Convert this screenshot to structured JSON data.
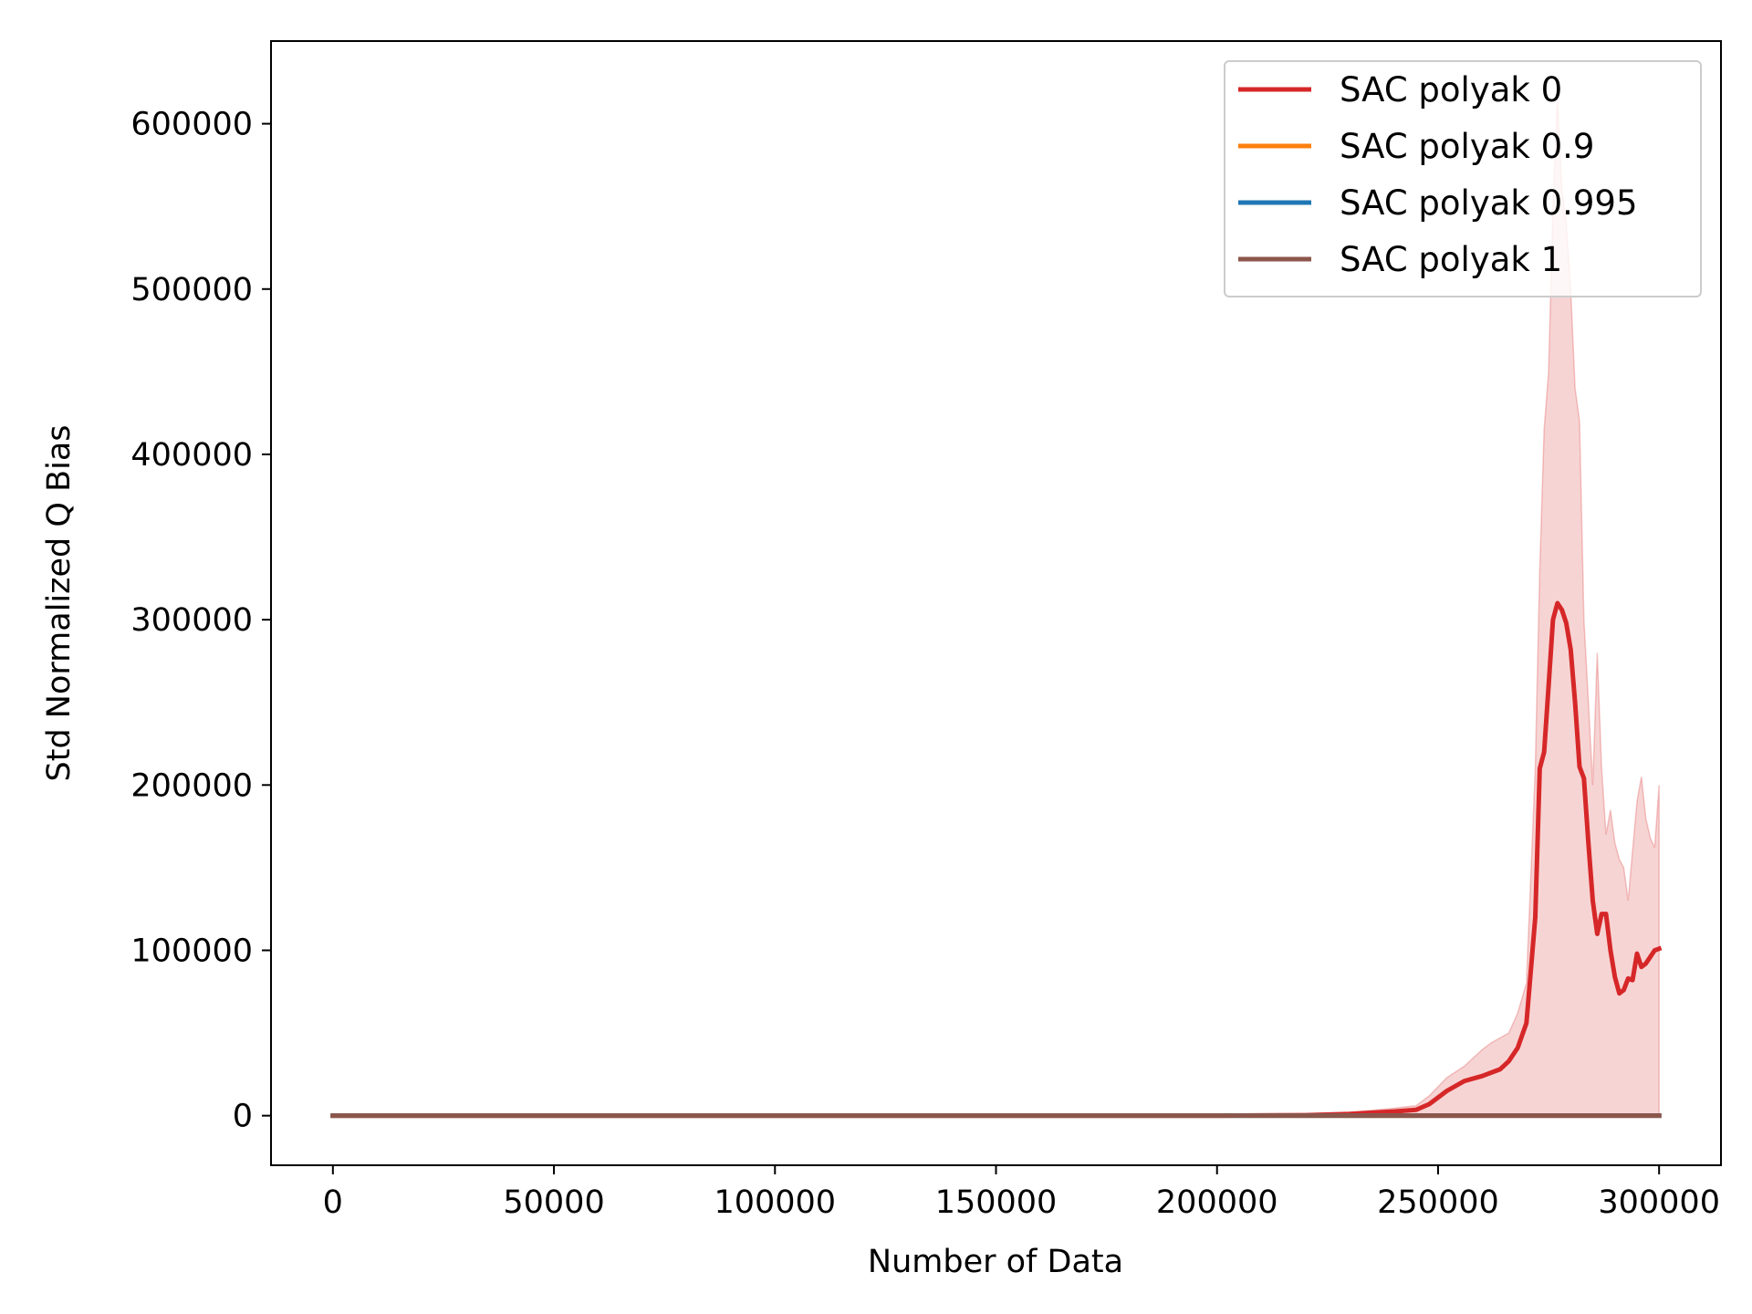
{
  "chart_data": {
    "type": "line",
    "title": "",
    "xlabel": "Number of Data",
    "ylabel": "Std Normalized Q Bias",
    "xlim": [
      -14000,
      314000
    ],
    "ylim": [
      -30000,
      650000
    ],
    "xticks": [
      0,
      50000,
      100000,
      150000,
      200000,
      250000,
      300000
    ],
    "yticks": [
      0,
      100000,
      200000,
      300000,
      400000,
      500000,
      600000
    ],
    "grid": false,
    "legend_position": "top-right",
    "series": [
      {
        "name": "SAC polyak 0",
        "color": "#d62728",
        "x": [
          0,
          50000,
          100000,
          150000,
          200000,
          220000,
          230000,
          240000,
          245000,
          248000,
          252000,
          256000,
          260000,
          262000,
          264000,
          266000,
          268000,
          270000,
          272000,
          273000,
          274000,
          275000,
          276000,
          277000,
          278000,
          279000,
          280000,
          281000,
          282000,
          283000,
          284000,
          285000,
          286000,
          287000,
          288000,
          289000,
          290000,
          291000,
          292000,
          293000,
          294000,
          295000,
          296000,
          297000,
          298000,
          299000,
          300000
        ],
        "y": [
          0,
          0,
          0,
          0,
          0,
          300,
          1000,
          2500,
          3500,
          7000,
          15000,
          21000,
          24000,
          26000,
          28000,
          33000,
          41000,
          56000,
          120000,
          210000,
          220000,
          260000,
          300000,
          310000,
          306000,
          298000,
          282000,
          250000,
          211000,
          204000,
          165000,
          130000,
          110000,
          122000,
          122000,
          100000,
          84000,
          74000,
          76000,
          83000,
          82000,
          98000,
          90000,
          92000,
          96000,
          100000,
          101000
        ],
        "band_upper": [
          0,
          0,
          0,
          0,
          0,
          500,
          2000,
          4500,
          6000,
          12000,
          23000,
          30000,
          40000,
          44000,
          47000,
          50000,
          62000,
          80000,
          210000,
          330000,
          415000,
          450000,
          550000,
          615000,
          560000,
          540000,
          500000,
          440000,
          420000,
          300000,
          250000,
          200000,
          280000,
          210000,
          170000,
          185000,
          165000,
          155000,
          150000,
          130000,
          160000,
          190000,
          205000,
          180000,
          168000,
          162000,
          200000
        ],
        "band_lower": [
          0,
          0,
          0,
          0,
          0,
          0,
          0,
          0,
          0,
          0,
          0,
          0,
          0,
          0,
          0,
          0,
          0,
          0,
          0,
          0,
          0,
          0,
          0,
          0,
          0,
          0,
          0,
          0,
          0,
          0,
          0,
          0,
          0,
          0,
          0,
          0,
          0,
          0,
          0,
          0,
          0,
          0,
          0,
          0,
          0,
          0,
          0
        ]
      },
      {
        "name": "SAC polyak 0.9",
        "color": "#ff7f0e",
        "x": [
          0,
          300000
        ],
        "y": [
          0,
          0
        ]
      },
      {
        "name": "SAC polyak 0.995",
        "color": "#1f77b4",
        "x": [
          0,
          300000
        ],
        "y": [
          0,
          0
        ]
      },
      {
        "name": " SAC polyak 1",
        "color": "#8c564b",
        "x": [
          0,
          300000
        ],
        "y": [
          0,
          0
        ]
      }
    ]
  }
}
